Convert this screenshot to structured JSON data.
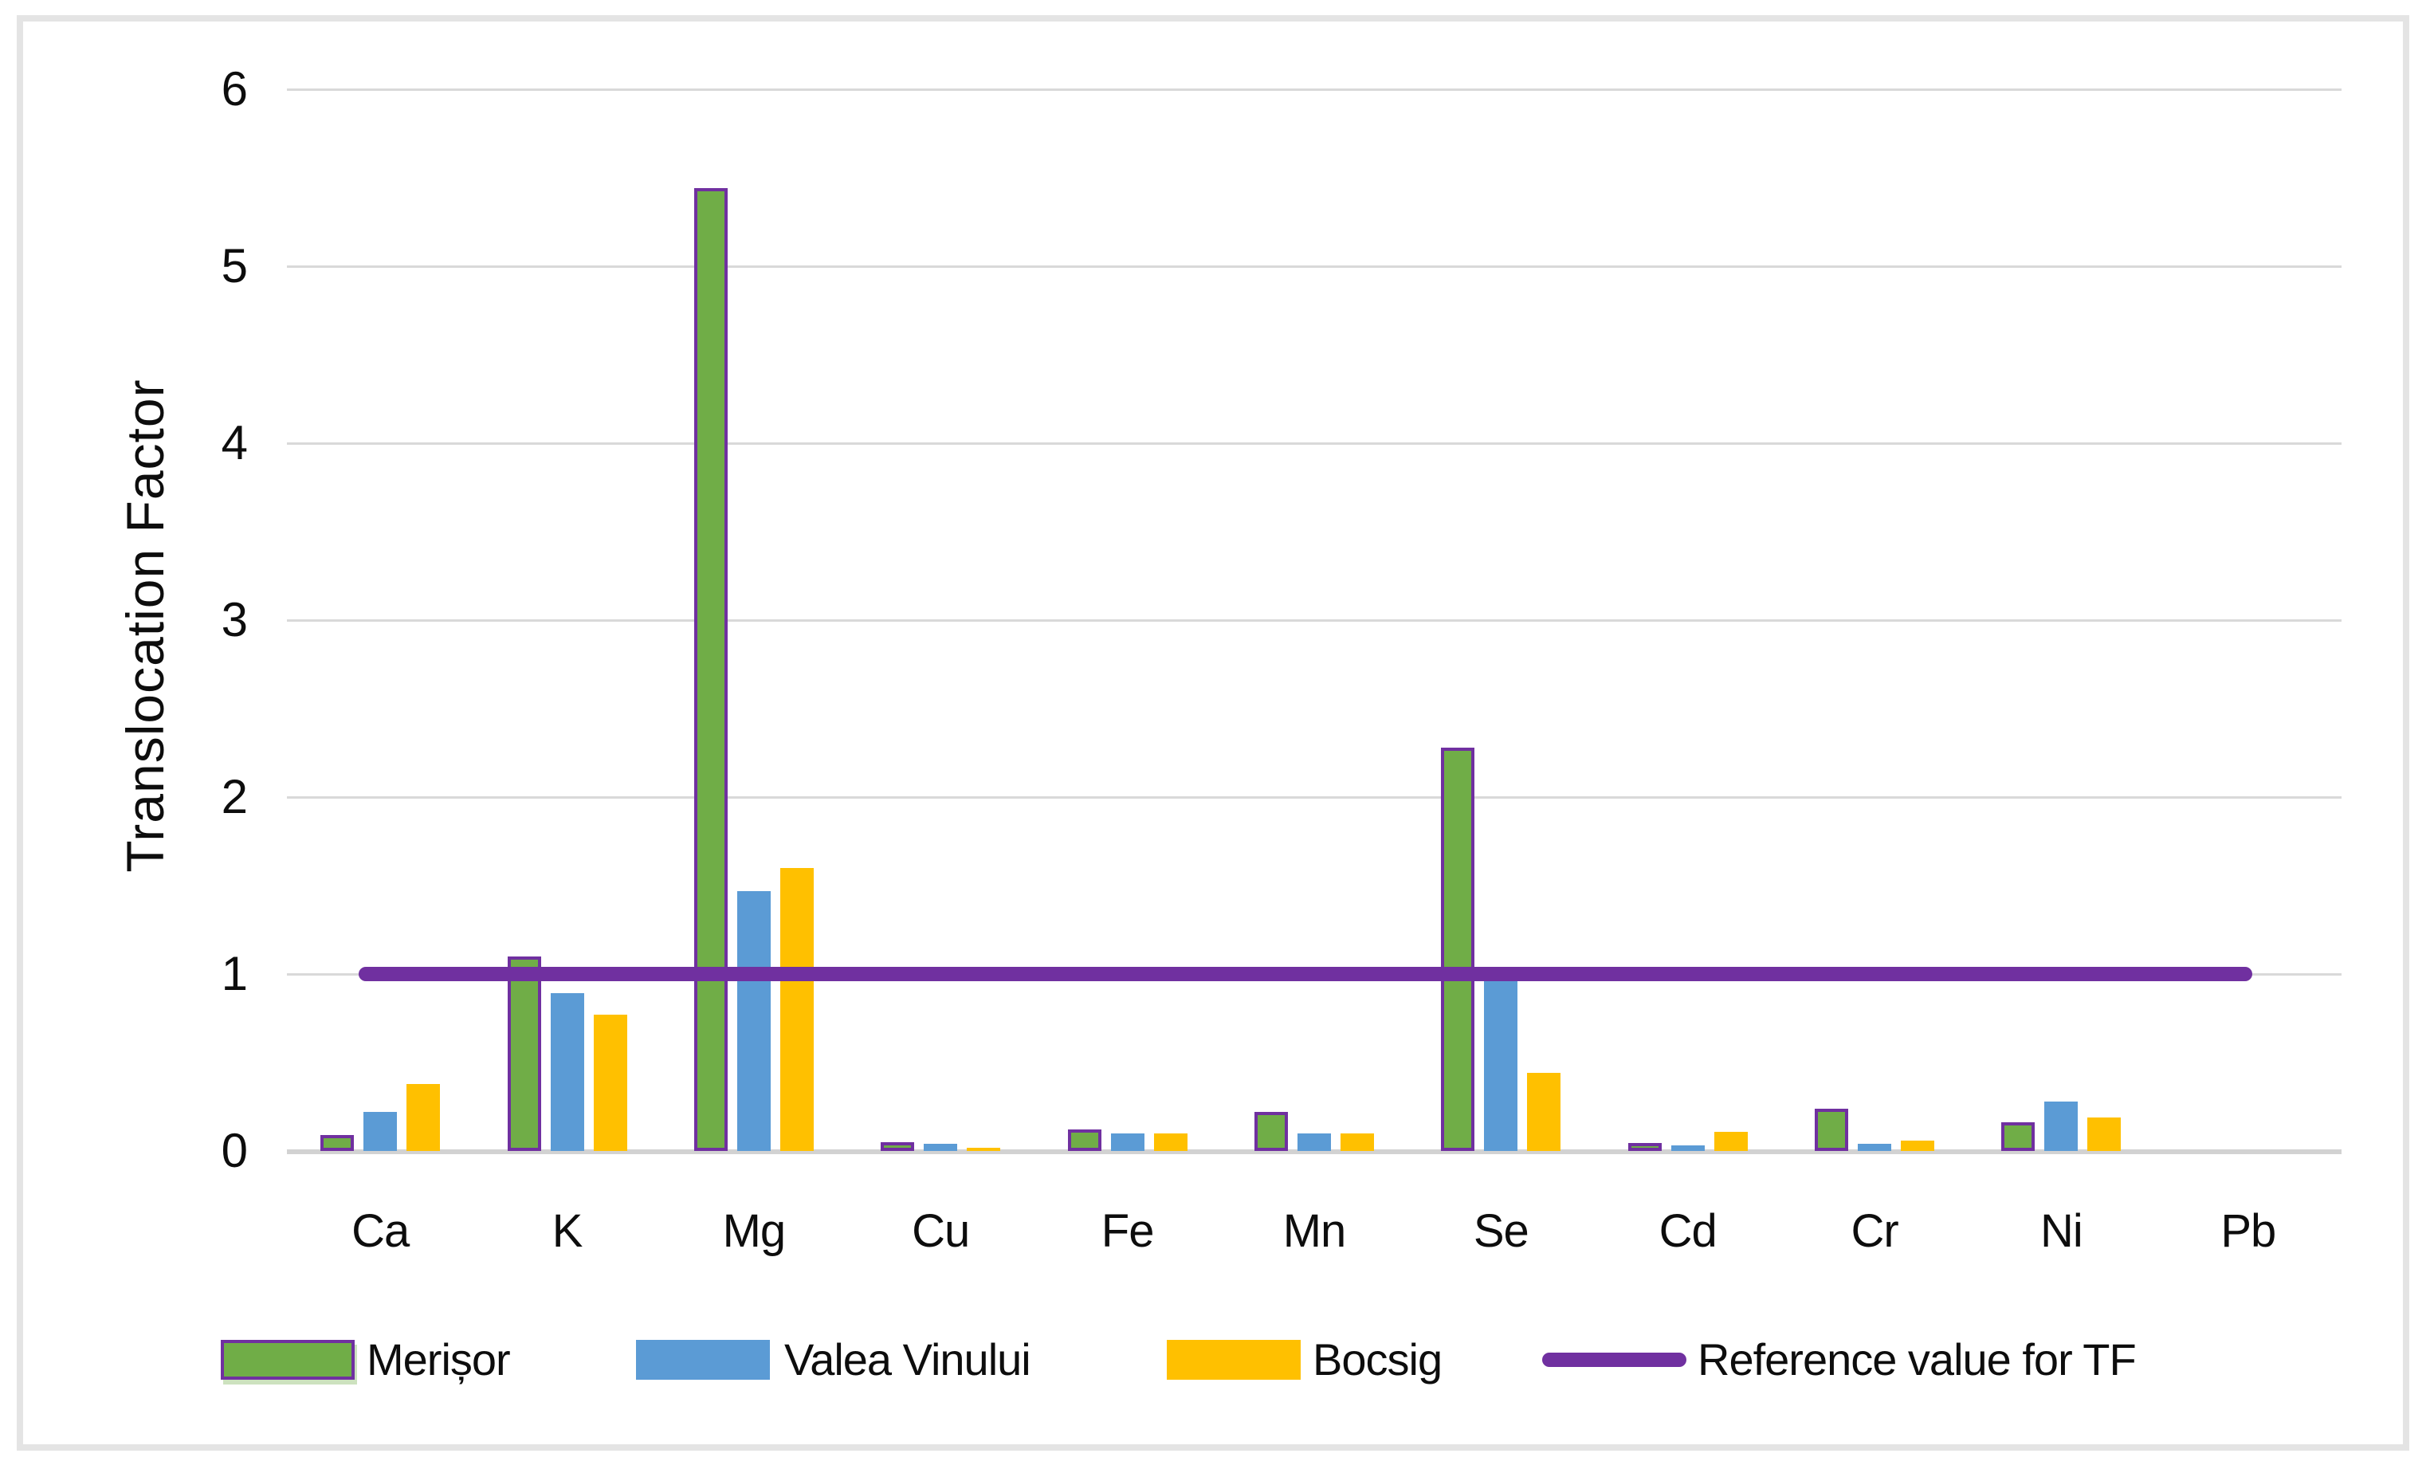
{
  "chart_data": {
    "type": "bar",
    "title": "",
    "ylabel": "Translocation Factor",
    "xlabel": "",
    "categories": [
      "Ca",
      "K",
      "Mg",
      "Cu",
      "Fe",
      "Mn",
      "Se",
      "Cd",
      "Cr",
      "Ni",
      "Pb"
    ],
    "series": [
      {
        "name": "Merișor",
        "color": "#70AD47",
        "border_color": "#7030A0",
        "values": [
          0.09,
          1.1,
          5.44,
          0.05,
          0.12,
          0.22,
          2.28,
          0.02,
          0.24,
          0.16,
          0
        ]
      },
      {
        "name": "Valea Vinului",
        "color": "#5B9BD5",
        "values": [
          0.22,
          0.89,
          1.47,
          0.04,
          0.1,
          0.1,
          0.97,
          0.03,
          0.04,
          0.28,
          0
        ]
      },
      {
        "name": "Bocsig",
        "color": "#FFC000",
        "values": [
          0.38,
          0.77,
          1.6,
          0.02,
          0.1,
          0.1,
          0.44,
          0.11,
          0.06,
          0.19,
          0
        ]
      }
    ],
    "reference_line": {
      "label": "Reference value for TF",
      "value": 1,
      "color": "#7030A0"
    },
    "yticks": [
      0,
      1,
      2,
      3,
      4,
      5,
      6
    ],
    "ylim": [
      0,
      6
    ],
    "grid": true,
    "legend_position": "bottom",
    "colors": {
      "gridline": "#d9d9d9",
      "axis_text": "#0d0d0d"
    }
  }
}
